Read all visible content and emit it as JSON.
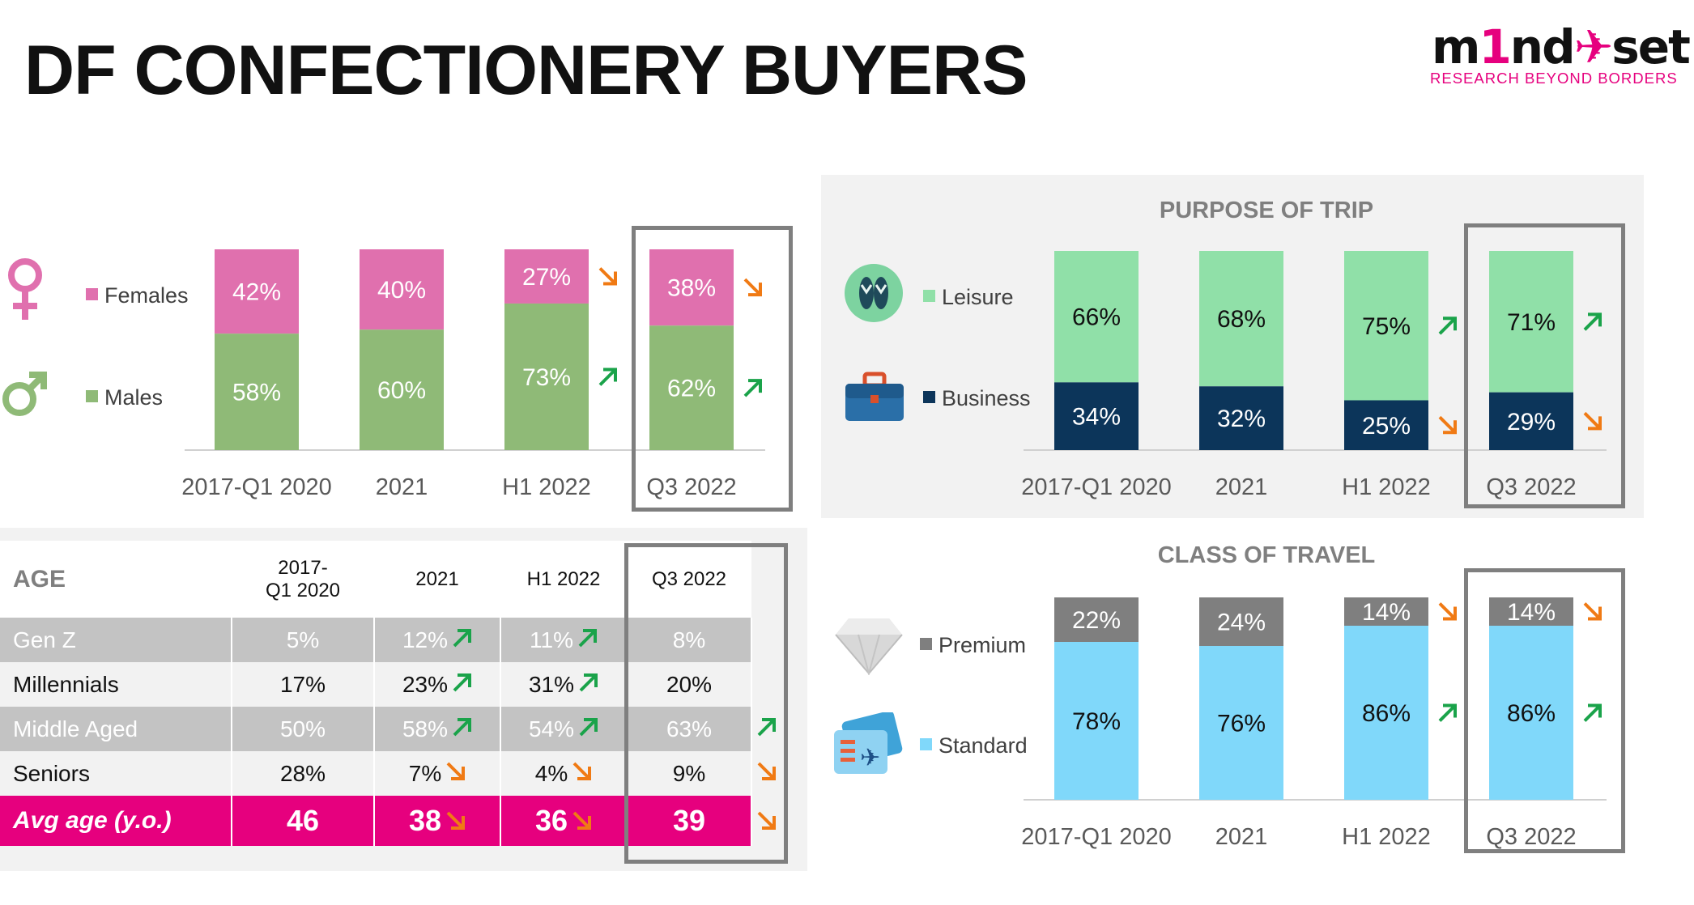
{
  "title": "DF CONFECTIONERY BUYERS",
  "logo": {
    "word_a": "m",
    "word_b": "1",
    "word_c": "nd",
    "word_d": "set",
    "tagline": "RESEARCH BEYOND BORDERS"
  },
  "colors": {
    "pink": "#e6007e",
    "female": "#e070ae",
    "male": "#8fba77",
    "leisure": "#90e0a8",
    "business": "#0c355a",
    "premium": "#7f7f7f",
    "standard": "#80d8fa",
    "up": "#1aa34a",
    "down": "#f07a14"
  },
  "chart_data": [
    {
      "id": "gender",
      "type": "bar",
      "stacked": true,
      "title": "",
      "categories": [
        "2017-Q1 2020",
        "2021",
        "H1 2022",
        "Q3 2022"
      ],
      "series": [
        {
          "name": "Females",
          "values": [
            42,
            40,
            27,
            38
          ],
          "labels": [
            "42%",
            "40%",
            "27%",
            "38%"
          ],
          "trend": [
            "",
            "",
            "down",
            "down"
          ]
        },
        {
          "name": "Males",
          "values": [
            58,
            60,
            73,
            62
          ],
          "labels": [
            "58%",
            "60%",
            "73%",
            "62%"
          ],
          "trend": [
            "",
            "",
            "up",
            "up"
          ]
        }
      ],
      "ylim": [
        0,
        100
      ],
      "highlight": "Q3 2022"
    },
    {
      "id": "purpose",
      "type": "bar",
      "stacked": true,
      "title": "PURPOSE OF TRIP",
      "categories": [
        "2017-Q1 2020",
        "2021",
        "H1 2022",
        "Q3 2022"
      ],
      "series": [
        {
          "name": "Leisure",
          "values": [
            66,
            68,
            75,
            71
          ],
          "labels": [
            "66%",
            "68%",
            "75%",
            "71%"
          ],
          "trend": [
            "",
            "",
            "up",
            "up"
          ]
        },
        {
          "name": "Business",
          "values": [
            34,
            32,
            25,
            29
          ],
          "labels": [
            "34%",
            "32%",
            "25%",
            "29%"
          ],
          "trend": [
            "",
            "",
            "down",
            "down"
          ]
        }
      ],
      "ylim": [
        0,
        100
      ],
      "highlight": "Q3 2022"
    },
    {
      "id": "class",
      "type": "bar",
      "stacked": true,
      "title": "CLASS OF TRAVEL",
      "categories": [
        "2017-Q1 2020",
        "2021",
        "H1 2022",
        "Q3 2022"
      ],
      "series": [
        {
          "name": "Premium",
          "values": [
            22,
            24,
            14,
            14
          ],
          "labels": [
            "22%",
            "24%",
            "14%",
            "14%"
          ],
          "trend": [
            "",
            "",
            "down",
            "down"
          ]
        },
        {
          "name": "Standard",
          "values": [
            78,
            76,
            86,
            86
          ],
          "labels": [
            "78%",
            "76%",
            "86%",
            "86%"
          ],
          "trend": [
            "",
            "",
            "up",
            "up"
          ]
        }
      ],
      "ylim": [
        0,
        100
      ],
      "highlight": "Q3 2022"
    },
    {
      "id": "age",
      "type": "table",
      "title": "AGE",
      "columns": [
        "2017-\nQ1 2020",
        "2021",
        "H1 2022",
        "Q3 2022"
      ],
      "rows": [
        {
          "label": "Gen Z",
          "cells": [
            {
              "v": "5%",
              "t": ""
            },
            {
              "v": "12%",
              "t": "up"
            },
            {
              "v": "11%",
              "t": "up"
            },
            {
              "v": "8%",
              "t": ""
            }
          ],
          "trend_q3": ""
        },
        {
          "label": "Millennials",
          "cells": [
            {
              "v": "17%",
              "t": ""
            },
            {
              "v": "23%",
              "t": "up"
            },
            {
              "v": "31%",
              "t": "up"
            },
            {
              "v": "20%",
              "t": ""
            }
          ],
          "trend_q3": ""
        },
        {
          "label": "Middle Aged",
          "cells": [
            {
              "v": "50%",
              "t": ""
            },
            {
              "v": "58%",
              "t": "up"
            },
            {
              "v": "54%",
              "t": "up"
            },
            {
              "v": "63%",
              "t": ""
            }
          ],
          "trend_q3": "up"
        },
        {
          "label": "Seniors",
          "cells": [
            {
              "v": "28%",
              "t": ""
            },
            {
              "v": "7%",
              "t": "down"
            },
            {
              "v": "4%",
              "t": "down"
            },
            {
              "v": "9%",
              "t": ""
            }
          ],
          "trend_q3": "down"
        },
        {
          "label": "Avg age (y.o.)",
          "cells": [
            {
              "v": "46",
              "t": ""
            },
            {
              "v": "38",
              "t": "down"
            },
            {
              "v": "36",
              "t": "down"
            },
            {
              "v": "39",
              "t": ""
            }
          ],
          "trend_q3": "down"
        }
      ],
      "highlight": "Q3 2022"
    }
  ],
  "icons": {
    "female": "female-symbol-icon",
    "male": "male-symbol-icon",
    "leisure": "flip-flops-icon",
    "business": "briefcase-icon",
    "premium": "diamond-icon",
    "standard": "boarding-ticket-icon"
  }
}
